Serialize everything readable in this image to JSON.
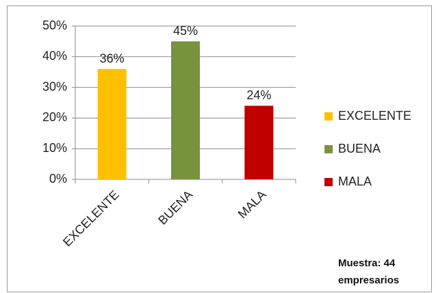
{
  "chart_data": {
    "type": "bar",
    "categories": [
      "EXCELENTE",
      "BUENA",
      "MALA"
    ],
    "values": [
      36,
      45,
      24
    ],
    "value_labels": [
      "36%",
      "45%",
      "24%"
    ],
    "colors": [
      "#ffc000",
      "#77933c",
      "#c00000"
    ],
    "ylim": [
      0,
      50
    ],
    "yticks": [
      {
        "value": 0,
        "label": "0%"
      },
      {
        "value": 10,
        "label": "10%"
      },
      {
        "value": 20,
        "label": "20%"
      },
      {
        "value": 30,
        "label": "30%"
      },
      {
        "value": 40,
        "label": "40%"
      },
      {
        "value": 50,
        "label": "50%"
      }
    ],
    "grid": true,
    "legend": "right",
    "annotation": "Muestra: 44 empresarios"
  }
}
